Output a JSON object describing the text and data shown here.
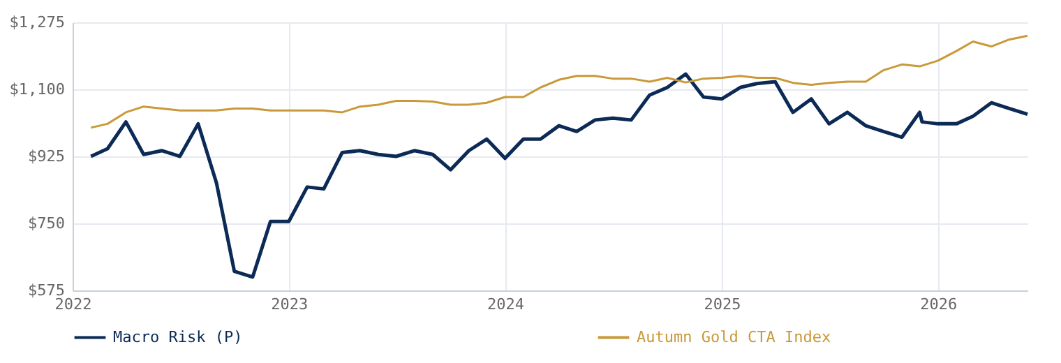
{
  "chart_data": {
    "type": "line",
    "xlim": [
      "2022-01",
      "2026-06"
    ],
    "xticks": [
      "2022",
      "2023",
      "2024",
      "2025",
      "2026"
    ],
    "ylim": [
      575,
      1275
    ],
    "yticks": [
      {
        "value": 575,
        "label": "$575"
      },
      {
        "value": 750,
        "label": "$750"
      },
      {
        "value": 925,
        "label": "$925"
      },
      {
        "value": 1100,
        "label": "$1,100"
      },
      {
        "value": 1275,
        "label": "$1,275"
      }
    ],
    "grid": true,
    "legend": "bottom",
    "marker": "none",
    "line_style": "solid",
    "series": [
      {
        "name": "Macro Risk (P)",
        "color": "#0b2a55",
        "x": [
          "2022-02",
          "2022-03",
          "2022-04",
          "2022-05",
          "2022-06",
          "2022-07",
          "2022-08",
          "2022-09",
          "2022-10",
          "2022-11",
          "2022-12",
          "2023-01",
          "2023-02",
          "2023-03",
          "2023-04",
          "2023-05",
          "2023-06",
          "2023-07",
          "2023-08",
          "2023-09",
          "2023-10",
          "2023-11",
          "2023-12",
          "2024-01",
          "2024-02",
          "2024-03",
          "2024-04",
          "2024-05",
          "2024-06",
          "2024-07",
          "2024-08",
          "2024-09",
          "2024-10",
          "2024-11",
          "2024-12",
          "2025-01",
          "2025-02",
          "2025-03",
          "2025-04",
          "2025-05",
          "2025-06",
          "2025-07",
          "2025-08",
          "2025-09",
          "2025-10",
          "2025-11",
          "2025-12",
          "2025-12-05",
          "2026-01",
          "2026-02",
          "2026-03",
          "2026-04",
          "2026-05",
          "2026-06"
        ],
        "values": [
          925,
          945,
          1015,
          930,
          940,
          925,
          1010,
          855,
          625,
          610,
          755,
          755,
          845,
          840,
          935,
          940,
          930,
          925,
          940,
          930,
          890,
          940,
          970,
          920,
          970,
          970,
          1005,
          990,
          1020,
          1025,
          1020,
          1085,
          1105,
          1140,
          1080,
          1075,
          1105,
          1115,
          1120,
          1040,
          1075,
          1010,
          1040,
          1005,
          990,
          975,
          1040,
          1015,
          1010,
          1010,
          1030,
          1065,
          1050,
          1035
        ]
      },
      {
        "name": "Autumn Gold CTA Index",
        "color": "#c9993a",
        "x": [
          "2022-02",
          "2022-03",
          "2022-04",
          "2022-05",
          "2022-06",
          "2022-07",
          "2022-08",
          "2022-09",
          "2022-10",
          "2022-11",
          "2022-12",
          "2023-01",
          "2023-02",
          "2023-03",
          "2023-04",
          "2023-05",
          "2023-06",
          "2023-07",
          "2023-08",
          "2023-09",
          "2023-10",
          "2023-11",
          "2023-12",
          "2024-01",
          "2024-02",
          "2024-03",
          "2024-04",
          "2024-05",
          "2024-06",
          "2024-07",
          "2024-08",
          "2024-09",
          "2024-10",
          "2024-11",
          "2024-12",
          "2025-01",
          "2025-02",
          "2025-03",
          "2025-04",
          "2025-05",
          "2025-06",
          "2025-07",
          "2025-08",
          "2025-09",
          "2025-10",
          "2025-11",
          "2025-12",
          "2026-01",
          "2026-02",
          "2026-03",
          "2026-04",
          "2026-05",
          "2026-06"
        ],
        "values": [
          1000,
          1010,
          1040,
          1055,
          1050,
          1045,
          1045,
          1045,
          1050,
          1050,
          1045,
          1045,
          1045,
          1045,
          1040,
          1055,
          1060,
          1070,
          1070,
          1068,
          1060,
          1060,
          1065,
          1080,
          1080,
          1105,
          1125,
          1135,
          1135,
          1128,
          1128,
          1120,
          1130,
          1118,
          1128,
          1130,
          1135,
          1130,
          1130,
          1117,
          1112,
          1117,
          1120,
          1120,
          1150,
          1165,
          1160,
          1175,
          1200,
          1225,
          1212,
          1230,
          1240
        ]
      }
    ]
  }
}
